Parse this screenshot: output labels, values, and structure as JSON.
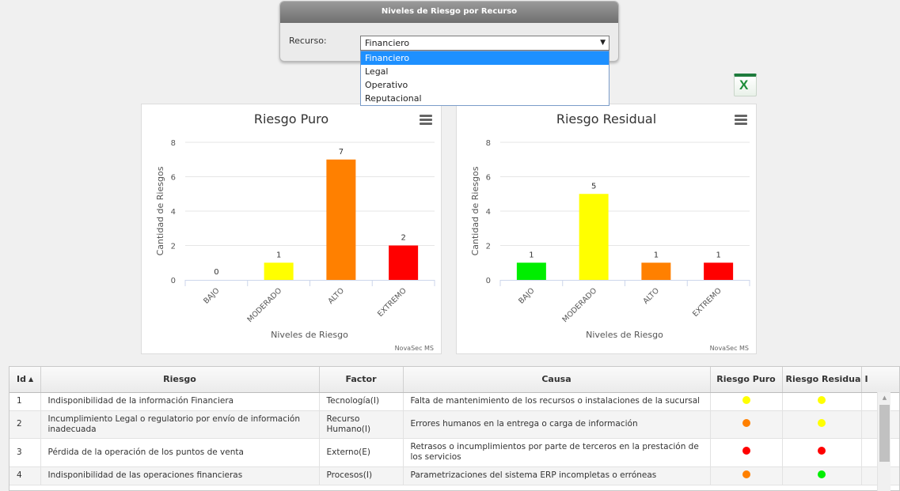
{
  "filter": {
    "title": "Niveles de Riesgo por Recurso",
    "label": "Recurso:",
    "selected": "Financiero",
    "options": [
      "Financiero",
      "Legal",
      "Operativo",
      "Reputacional"
    ]
  },
  "export": {
    "icon": "excel-icon",
    "glyph": "X"
  },
  "colors": {
    "BAJO": "#00ee00",
    "MODERADO": "#ffff00",
    "ALTO": "#ff8000",
    "EXTREMO": "#ff0000"
  },
  "chart_data": [
    {
      "type": "bar",
      "title": "Riesgo Puro",
      "categories": [
        "BAJO",
        "MODERADO",
        "ALTO",
        "EXTREMO"
      ],
      "values": [
        0,
        1,
        7,
        2
      ],
      "xlabel": "Niveles de Riesgo",
      "ylabel": "Cantidad de Riesgos",
      "ylim": [
        0,
        8
      ],
      "yticks": [
        0,
        2,
        4,
        6,
        8
      ],
      "credit": "NovaSec MS",
      "grid": true
    },
    {
      "type": "bar",
      "title": "Riesgo Residual",
      "categories": [
        "BAJO",
        "MODERADO",
        "ALTO",
        "EXTREMO"
      ],
      "values": [
        1,
        5,
        1,
        1
      ],
      "xlabel": "Niveles de Riesgo",
      "ylabel": "Cantidad de Riesgos",
      "ylim": [
        0,
        8
      ],
      "yticks": [
        0,
        2,
        4,
        6,
        8
      ],
      "credit": "NovaSec MS",
      "grid": true
    }
  ],
  "table": {
    "headers": [
      "Id",
      "Riesgo",
      "Factor",
      "Causa",
      "Riesgo Puro",
      "Riesgo Residual",
      "I"
    ],
    "rows": [
      {
        "id": "1",
        "riesgo": "Indisponibilidad de la información Financiera",
        "factor": "Tecnología(I)",
        "causa": "Falta de mantenimiento de los recursos o instalaciones de la sucursal",
        "puro": "#ffff00",
        "residual": "#ffff00"
      },
      {
        "id": "2",
        "riesgo": "Incumplimiento Legal o regulatorio por envío de información inadecuada",
        "factor": "Recurso Humano(I)",
        "causa": "Errores humanos en la entrega o carga de información",
        "puro": "#ff8000",
        "residual": "#ffff00"
      },
      {
        "id": "3",
        "riesgo": "Pérdida de la operación de los puntos de venta",
        "factor": "Externo(E)",
        "causa": "Retrasos o incumplimientos por parte de terceros en la prestación de los servicios",
        "puro": "#ff0000",
        "residual": "#ff0000"
      },
      {
        "id": "4",
        "riesgo": "Indisponibilidad de las operaciones financieras",
        "factor": "Procesos(I)",
        "causa": "Parametrizaciones del sistema ERP incompletas o erróneas",
        "puro": "#ff8000",
        "residual": "#00ee00"
      }
    ]
  }
}
